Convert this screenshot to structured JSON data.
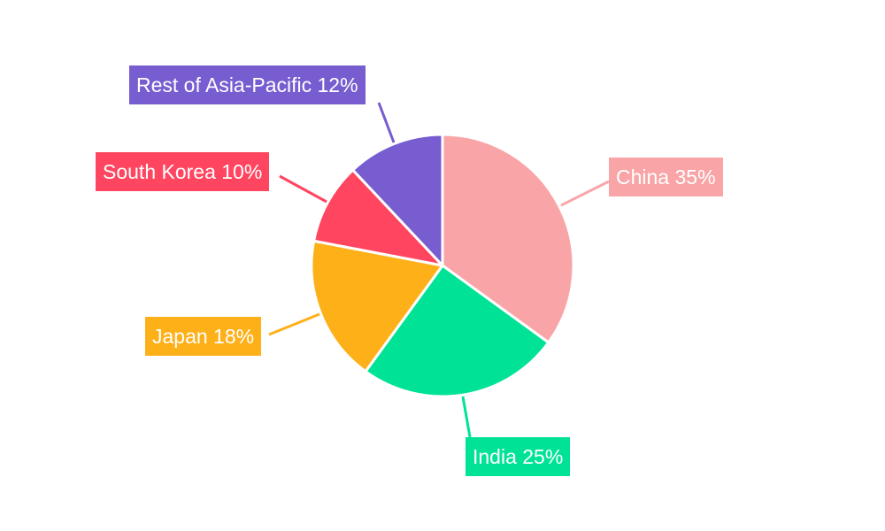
{
  "chart_data": {
    "type": "pie",
    "title": "",
    "start_angle": "top",
    "direction": "clockwise",
    "slices": [
      {
        "label": "China",
        "value": 35,
        "text": "China 35%",
        "color": "#F9A5A7"
      },
      {
        "label": "India",
        "value": 25,
        "text": "India 25%",
        "color": "#00E396"
      },
      {
        "label": "Japan",
        "value": 18,
        "text": "Japan 18%",
        "color": "#FEB019"
      },
      {
        "label": "South Korea",
        "value": 10,
        "text": "South Korea 10%",
        "color": "#FF4560"
      },
      {
        "label": "Rest of Asia-Pacific",
        "value": 12,
        "text": "Rest of Asia-Pacific 12%",
        "color": "#775DD0"
      }
    ]
  }
}
